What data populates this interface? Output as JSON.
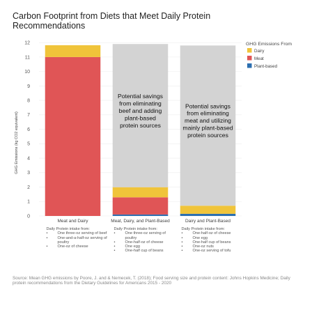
{
  "title": "Carbon Footprint from Diets that Meet Daily Protein Recommendations",
  "chart_data": {
    "type": "bar",
    "stacked": true,
    "categories": [
      "Meat and Dairy",
      "Meat, Dairy, and Plant-Based",
      "Dairy and Plant-Based"
    ],
    "series": [
      {
        "name": "Dairy",
        "color": "#f0c43a",
        "values": [
          0.82,
          0.7,
          0.56
        ]
      },
      {
        "name": "Meat",
        "color": "#e05556",
        "values": [
          11.0,
          1.19,
          0.0
        ]
      },
      {
        "name": "Plant-based",
        "color": "#2c6fb0",
        "values": [
          0.0,
          0.1,
          0.15
        ]
      }
    ],
    "potential_savings": [
      0.0,
      9.91,
      11.09
    ],
    "savings_color": "#d3d3d3",
    "annotations": [
      "",
      "Potential savings from eliminating beef and adding plant-based protein sources",
      "Potential savings from eliminating meat and utilizing mainly plant-based protein sources"
    ],
    "ylabel": "GHG Emissions (kg CO2 equivalent)",
    "xlabel": "",
    "ylim": [
      0,
      12.2
    ],
    "yticks": [
      0,
      1,
      2,
      3,
      4,
      5,
      6,
      7,
      8,
      9,
      10,
      11,
      12
    ],
    "legend_title": "GHG Emissions From",
    "legend_position": "right",
    "grid": true
  },
  "intake": [
    {
      "heading": "Daily Protein intake from:",
      "items": [
        "One three-oz serving of beef",
        "One-and-a-half-oz serving of poultry",
        "One-oz of cheese"
      ]
    },
    {
      "heading": "Daily Protein intake from:",
      "items": [
        "One three-oz serving of poultry",
        "One-half-oz of cheese",
        "One egg",
        "One-half cup of beans"
      ]
    },
    {
      "heading": "Daily Protein intake from:",
      "items": [
        "One-half-oz of cheese",
        "One egg",
        "One-half cup of beans",
        "One-oz nuts",
        "One-oz serving of tofu"
      ]
    }
  ],
  "source": "Source: Mean GHG emissions by Poore, J. and & Nemecek, T. (2018); Food serving size and protein content: Johns Hopkins Medicine; Daily protein recommendations from the Dietary Guidelines for Americans 2015 - 2020"
}
